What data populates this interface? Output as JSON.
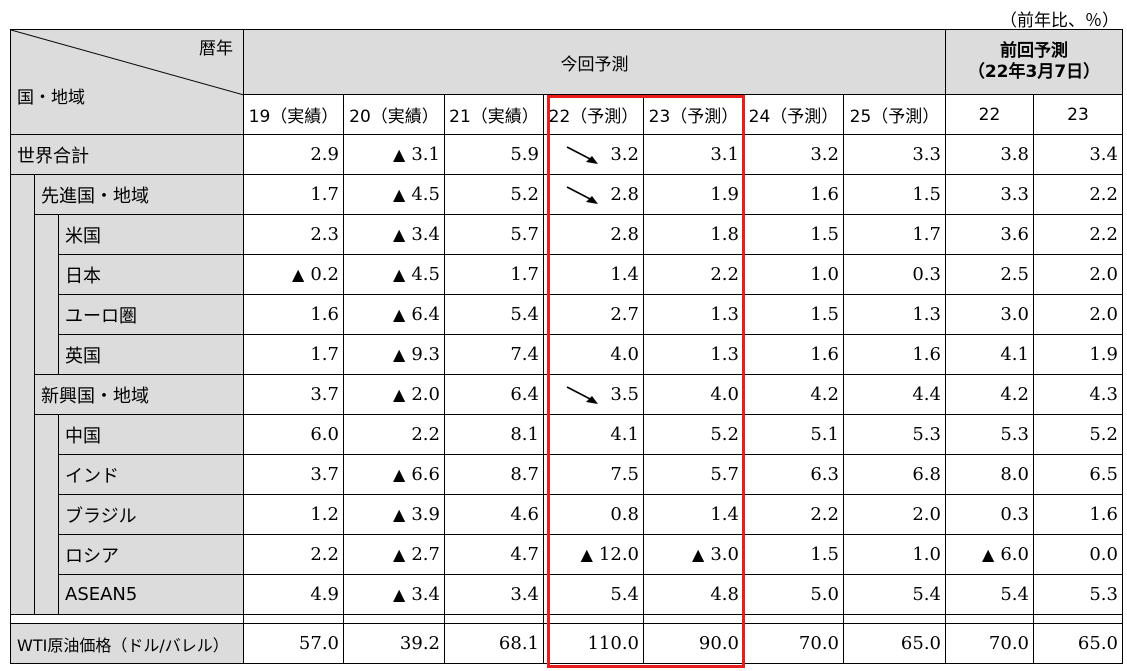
{
  "unit_note": "（前年比、％）",
  "corner": {
    "top_right": "暦年",
    "bottom_left": "国・地域"
  },
  "header": {
    "current_group": "今回予測",
    "prev_group_line1": "前回予測",
    "prev_group_line2": "（22年3月7日）",
    "columns": [
      "19（実績）",
      "20（実績）",
      "21（実績）",
      "22（予測）",
      "23（予測）",
      "24（予測）",
      "25（予測）"
    ],
    "prev_columns": [
      "22",
      "23"
    ]
  },
  "rows": [
    {
      "label": "世界合計",
      "level": 0,
      "values": [
        "2.9",
        "▲ 3.1",
        "5.9",
        "3.2",
        "3.1",
        "3.2",
        "3.3",
        "3.8",
        "3.4"
      ],
      "arrow_col": 3
    },
    {
      "label": "先進国・地域",
      "level": 1,
      "values": [
        "1.7",
        "▲ 4.5",
        "5.2",
        "2.8",
        "1.9",
        "1.6",
        "1.5",
        "3.3",
        "2.2"
      ],
      "arrow_col": 3
    },
    {
      "label": "米国",
      "level": 2,
      "values": [
        "2.3",
        "▲ 3.4",
        "5.7",
        "2.8",
        "1.8",
        "1.5",
        "1.7",
        "3.6",
        "2.2"
      ]
    },
    {
      "label": "日本",
      "level": 2,
      "values": [
        "▲ 0.2",
        "▲ 4.5",
        "1.7",
        "1.4",
        "2.2",
        "1.0",
        "0.3",
        "2.5",
        "2.0"
      ]
    },
    {
      "label": "ユーロ圏",
      "level": 2,
      "values": [
        "1.6",
        "▲ 6.4",
        "5.4",
        "2.7",
        "1.3",
        "1.5",
        "1.3",
        "3.0",
        "2.0"
      ]
    },
    {
      "label": "英国",
      "level": 2,
      "values": [
        "1.7",
        "▲ 9.3",
        "7.4",
        "4.0",
        "1.3",
        "1.6",
        "1.6",
        "4.1",
        "1.9"
      ]
    },
    {
      "label": "新興国・地域",
      "level": 1,
      "values": [
        "3.7",
        "▲ 2.0",
        "6.4",
        "3.5",
        "4.0",
        "4.2",
        "4.4",
        "4.2",
        "4.3"
      ],
      "arrow_col": 3
    },
    {
      "label": "中国",
      "level": 2,
      "values": [
        "6.0",
        "2.2",
        "8.1",
        "4.1",
        "5.2",
        "5.1",
        "5.3",
        "5.3",
        "5.2"
      ]
    },
    {
      "label": "インド",
      "level": 2,
      "values": [
        "3.7",
        "▲ 6.6",
        "8.7",
        "7.5",
        "5.7",
        "6.3",
        "6.8",
        "8.0",
        "6.5"
      ]
    },
    {
      "label": "ブラジル",
      "level": 2,
      "values": [
        "1.2",
        "▲ 3.9",
        "4.6",
        "0.8",
        "1.4",
        "2.2",
        "2.0",
        "0.3",
        "1.6"
      ]
    },
    {
      "label": "ロシア",
      "level": 2,
      "values": [
        "2.2",
        "▲ 2.7",
        "4.7",
        "▲ 12.0",
        "▲ 3.0",
        "1.5",
        "1.0",
        "▲ 6.0",
        "0.0"
      ]
    },
    {
      "label": "ASEAN5",
      "level": 2,
      "values": [
        "4.9",
        "▲ 3.4",
        "3.4",
        "5.4",
        "4.8",
        "5.0",
        "5.4",
        "5.4",
        "5.3"
      ]
    }
  ],
  "oil_row": {
    "label": "WTI原油価格（ドル/バレル）",
    "values": [
      "57.0",
      "39.2",
      "68.1",
      "110.0",
      "90.0",
      "70.0",
      "65.0",
      "70.0",
      "65.0"
    ]
  },
  "colors": {
    "gray": "#dcdcdc",
    "highlight": "#e81e1e"
  }
}
